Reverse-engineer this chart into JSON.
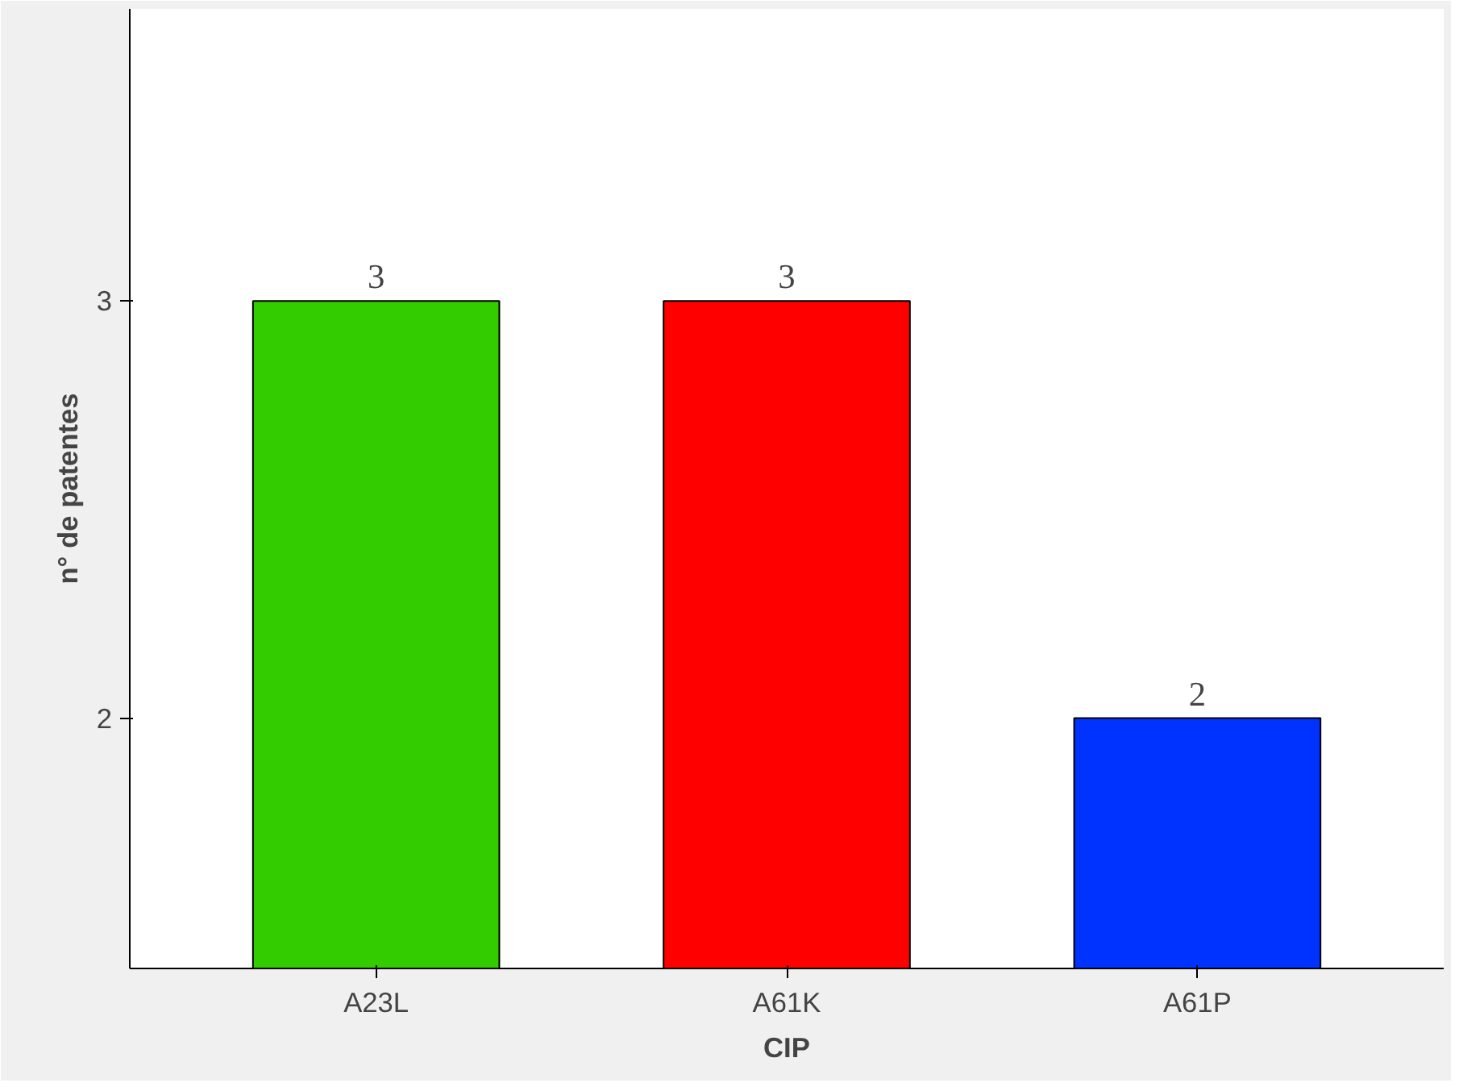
{
  "chart_data": {
    "type": "bar",
    "xlabel": "CIP",
    "ylabel": "n° de patentes",
    "categories": [
      "A23L",
      "A61K",
      "A61P"
    ],
    "values": [
      3,
      3,
      2
    ],
    "colors": [
      "#33cc00",
      "#ff0000",
      "#0033ff"
    ],
    "ylim": [
      1.4,
      3.7
    ],
    "yticks": [
      2,
      3
    ],
    "grid": false,
    "data_labels": true
  }
}
